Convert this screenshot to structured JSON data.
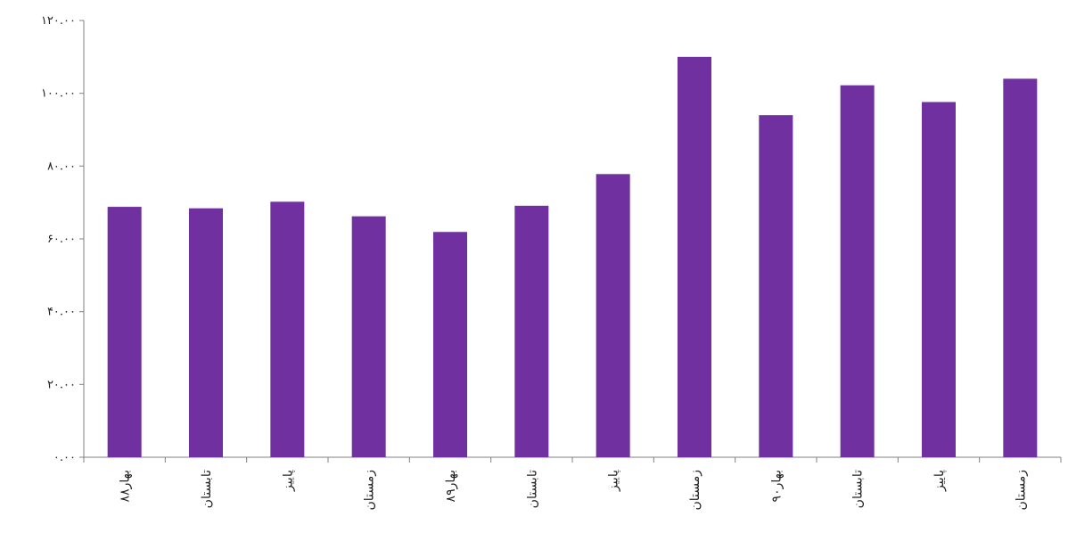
{
  "chart_data": {
    "type": "bar",
    "title": "",
    "xlabel": "",
    "ylabel": "",
    "categories": [
      "بهار۸۸",
      "تابستان",
      "پاییز",
      "زمستان",
      "بهار۸۹",
      "تابستان",
      "پاییز",
      "زمستان",
      "بهار۹۰",
      "تابستان",
      "پاییز",
      "زمستان"
    ],
    "values": [
      68.8,
      68.4,
      70.2,
      66.2,
      61.9,
      69.1,
      77.8,
      110.0,
      94.0,
      102.2,
      97.6,
      104.0
    ],
    "ylim": [
      0,
      120
    ],
    "yticks": [
      0,
      20,
      40,
      60,
      80,
      100,
      120
    ],
    "ytick_labels": [
      "۰.۰۰",
      "۲۰.۰۰",
      "۴۰.۰۰",
      "۶۰.۰۰",
      "۸۰.۰۰",
      "۱۰۰.۰۰",
      "۱۲۰.۰۰"
    ],
    "grid": false,
    "legend": "none",
    "colors": {
      "bar": "#7030A0",
      "axis": "#808080",
      "text": "#222222"
    }
  }
}
